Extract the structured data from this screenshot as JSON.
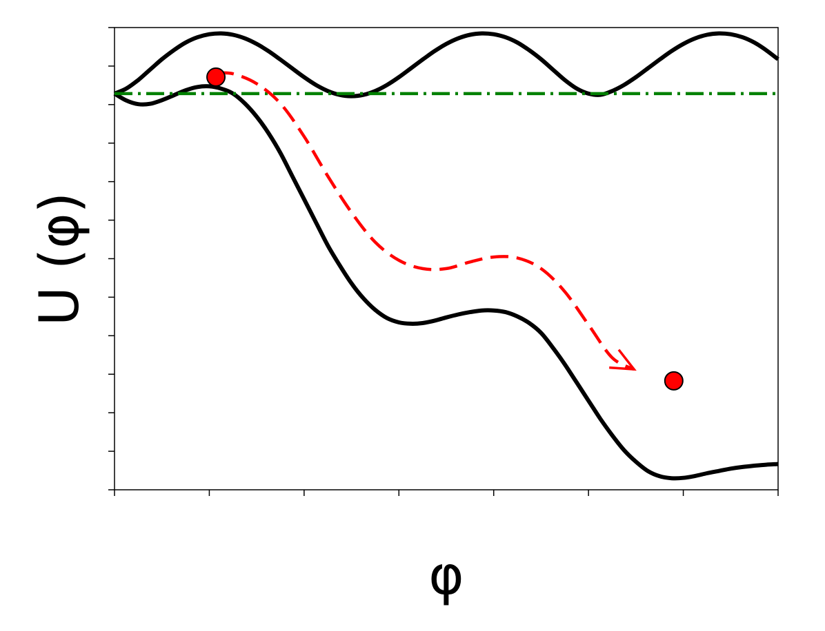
{
  "chart_data": {
    "type": "line",
    "xlabel": "φ",
    "ylabel": "U (φ)",
    "xlim": [
      0,
      7
    ],
    "ylim": [
      -12,
      2
    ],
    "x_tick_count": 8,
    "y_tick_count": 13,
    "tick_labels_shown": false,
    "grid": false,
    "colors": {
      "curves": "#000000",
      "baseline": "#008000",
      "path": "#ff0000",
      "ball_fill": "#ff0000",
      "ball_stroke": "#000000"
    },
    "series": [
      {
        "style": "solid",
        "x": [
          0,
          0.125,
          0.25,
          0.375,
          0.5,
          0.625,
          0.75,
          0.875,
          1,
          1.125,
          1.25,
          1.375,
          1.5,
          1.625,
          1.75,
          1.875,
          2,
          2.125,
          2.25,
          2.375,
          2.5,
          2.625,
          2.75,
          2.875,
          3,
          3.125,
          3.25,
          3.375,
          3.5,
          3.625,
          3.75,
          3.875,
          4,
          4.125,
          4.25,
          4.375,
          4.5,
          4.625,
          4.75,
          4.875,
          5,
          5.125,
          5.25,
          5.375,
          5.5,
          5.625,
          5.75,
          5.875,
          6,
          6.125,
          6.25,
          6.375,
          6.5,
          6.625,
          6.75,
          6.875,
          7
        ],
        "y": [
          0.0,
          0.154,
          0.411,
          0.725,
          1.04,
          1.313,
          1.545,
          1.706,
          1.797,
          1.822,
          1.781,
          1.672,
          1.503,
          1.284,
          1.029,
          0.762,
          0.498,
          0.263,
          0.079,
          -0.039,
          -0.079,
          -0.039,
          0.079,
          0.263,
          0.498,
          0.762,
          1.029,
          1.284,
          1.503,
          1.672,
          1.781,
          1.822,
          1.797,
          1.706,
          1.545,
          1.313,
          1.04,
          0.725,
          0.411,
          0.154,
          0.0,
          -0.039,
          0.079,
          0.263,
          0.498,
          0.762,
          1.029,
          1.284,
          1.503,
          1.672,
          1.781,
          1.822,
          1.797,
          1.706,
          1.545,
          1.313,
          1.04
        ]
      },
      {
        "style": "solid",
        "x": [
          0,
          0.125,
          0.25,
          0.375,
          0.5,
          0.625,
          0.75,
          0.875,
          1,
          1.125,
          1.25,
          1.375,
          1.5,
          1.625,
          1.75,
          1.875,
          2,
          2.125,
          2.25,
          2.375,
          2.5,
          2.625,
          2.75,
          2.875,
          3,
          3.125,
          3.25,
          3.375,
          3.5,
          3.625,
          3.75,
          3.875,
          4,
          4.125,
          4.25,
          4.375,
          4.5,
          4.625,
          4.75,
          4.875,
          5,
          5.125,
          5.25,
          5.375,
          5.5,
          5.625,
          5.75,
          5.875,
          6,
          6.125,
          6.25,
          6.375,
          6.5,
          6.625,
          6.75,
          6.875,
          7
        ],
        "y": [
          0.0,
          -0.21,
          -0.32,
          -0.31,
          -0.2,
          -0.05,
          0.1,
          0.2,
          0.22,
          0.15,
          0.0,
          -0.3,
          -0.7,
          -1.2,
          -1.8,
          -2.5,
          -3.2,
          -3.9,
          -4.6,
          -5.2,
          -5.75,
          -6.2,
          -6.55,
          -6.8,
          -6.93,
          -6.97,
          -6.95,
          -6.88,
          -6.78,
          -6.69,
          -6.62,
          -6.57,
          -6.57,
          -6.62,
          -6.75,
          -6.95,
          -7.25,
          -7.7,
          -8.2,
          -8.75,
          -9.3,
          -9.85,
          -10.35,
          -10.8,
          -11.15,
          -11.43,
          -11.59,
          -11.65,
          -11.64,
          -11.58,
          -11.5,
          -11.43,
          -11.36,
          -11.31,
          -11.27,
          -11.24,
          -11.22
        ]
      },
      {
        "style": "dash-dot",
        "x": [
          0,
          7
        ],
        "y": [
          0,
          0
        ]
      },
      {
        "style": "dashed",
        "x": [
          1.07,
          1.25,
          1.5,
          1.75,
          2.0,
          2.25,
          2.5,
          2.75,
          3.0,
          3.25,
          3.5,
          3.75,
          4.0,
          4.25,
          4.5,
          4.75,
          5.0,
          5.25,
          5.48
        ],
        "y": [
          0.62,
          0.6,
          0.3,
          -0.3,
          -1.3,
          -2.5,
          -3.6,
          -4.5,
          -5.05,
          -5.3,
          -5.3,
          -5.1,
          -4.95,
          -4.98,
          -5.3,
          -6.0,
          -7.0,
          -8.0,
          -8.35
        ]
      }
    ],
    "markers": [
      {
        "x": 1.07,
        "y": 0.5
      },
      {
        "x": 5.9,
        "y": -8.7
      }
    ]
  }
}
